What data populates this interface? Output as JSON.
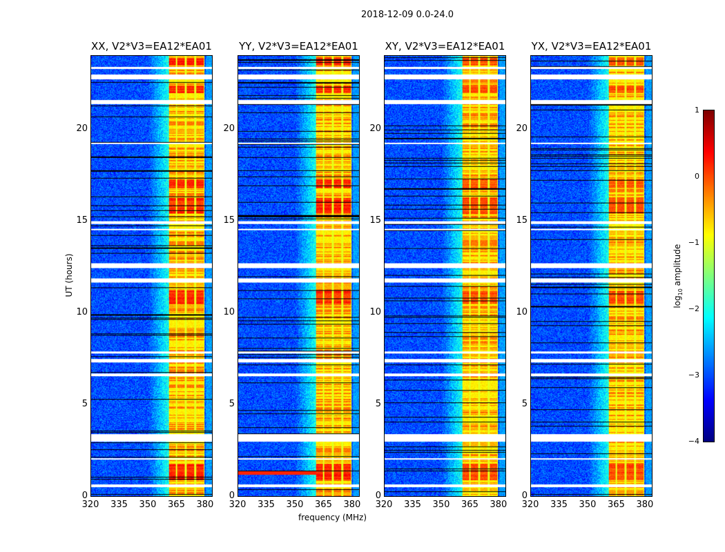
{
  "chart_data": {
    "type": "heatmap",
    "title": "2018-12-09 0.0-24.0",
    "panels": [
      {
        "title": "XX, V2*V3=EA12*EA01",
        "id": "xx"
      },
      {
        "title": "YY, V2*V3=EA12*EA01",
        "id": "yy"
      },
      {
        "title": "XY, V2*V3=EA12*EA01",
        "id": "xy"
      },
      {
        "title": "YX, V2*V3=EA12*EA01",
        "id": "yx"
      }
    ],
    "xlabel": "frequency (MHz)",
    "ylabel": "UT (hours)",
    "xlim": [
      320,
      384
    ],
    "ylim": [
      0,
      24
    ],
    "xticks": [
      "320",
      "335",
      "350",
      "365",
      "380"
    ],
    "xtick_values": [
      320,
      335,
      350,
      365,
      380
    ],
    "yticks": [
      "0",
      "5",
      "10",
      "15",
      "20"
    ],
    "ytick_values": [
      0,
      5,
      10,
      15,
      20
    ],
    "colorbar": {
      "label": "log10 amplitude",
      "label_main": "log",
      "label_sub": "10",
      "label_rest": " amplitude",
      "range": [
        -4,
        1
      ],
      "ticks": [
        "1",
        "0",
        "−1",
        "−2",
        "−3",
        "−4"
      ],
      "tick_values": [
        1,
        0,
        -1,
        -2,
        -3,
        -4
      ],
      "colormap": "jet"
    },
    "background_level": -3.0,
    "band": {
      "freq_range": [
        361,
        380
      ],
      "level": -0.8
    },
    "band_channel_gaps_mhz": [
      365,
      370,
      375,
      380
    ],
    "strong_rows_hours": [
      [
        0.9,
        1.8
      ],
      [
        10.5,
        11.2
      ],
      [
        15.4,
        16.3
      ],
      [
        16.8,
        17.3
      ],
      [
        22.0,
        22.4
      ],
      [
        23.5,
        23.9
      ]
    ],
    "flagged_rows_hours": [
      [
        0.5,
        0.65
      ],
      [
        2.0,
        2.1
      ],
      [
        3.0,
        3.4
      ],
      [
        6.55,
        6.7
      ],
      [
        7.3,
        7.5
      ],
      [
        7.8,
        7.9
      ],
      [
        11.65,
        11.9
      ],
      [
        12.45,
        12.7
      ],
      [
        14.5,
        14.6
      ],
      [
        14.85,
        15.0
      ],
      [
        19.2,
        19.3
      ],
      [
        21.4,
        21.6
      ],
      [
        22.75,
        23.0
      ],
      [
        23.3,
        23.4
      ]
    ]
  }
}
